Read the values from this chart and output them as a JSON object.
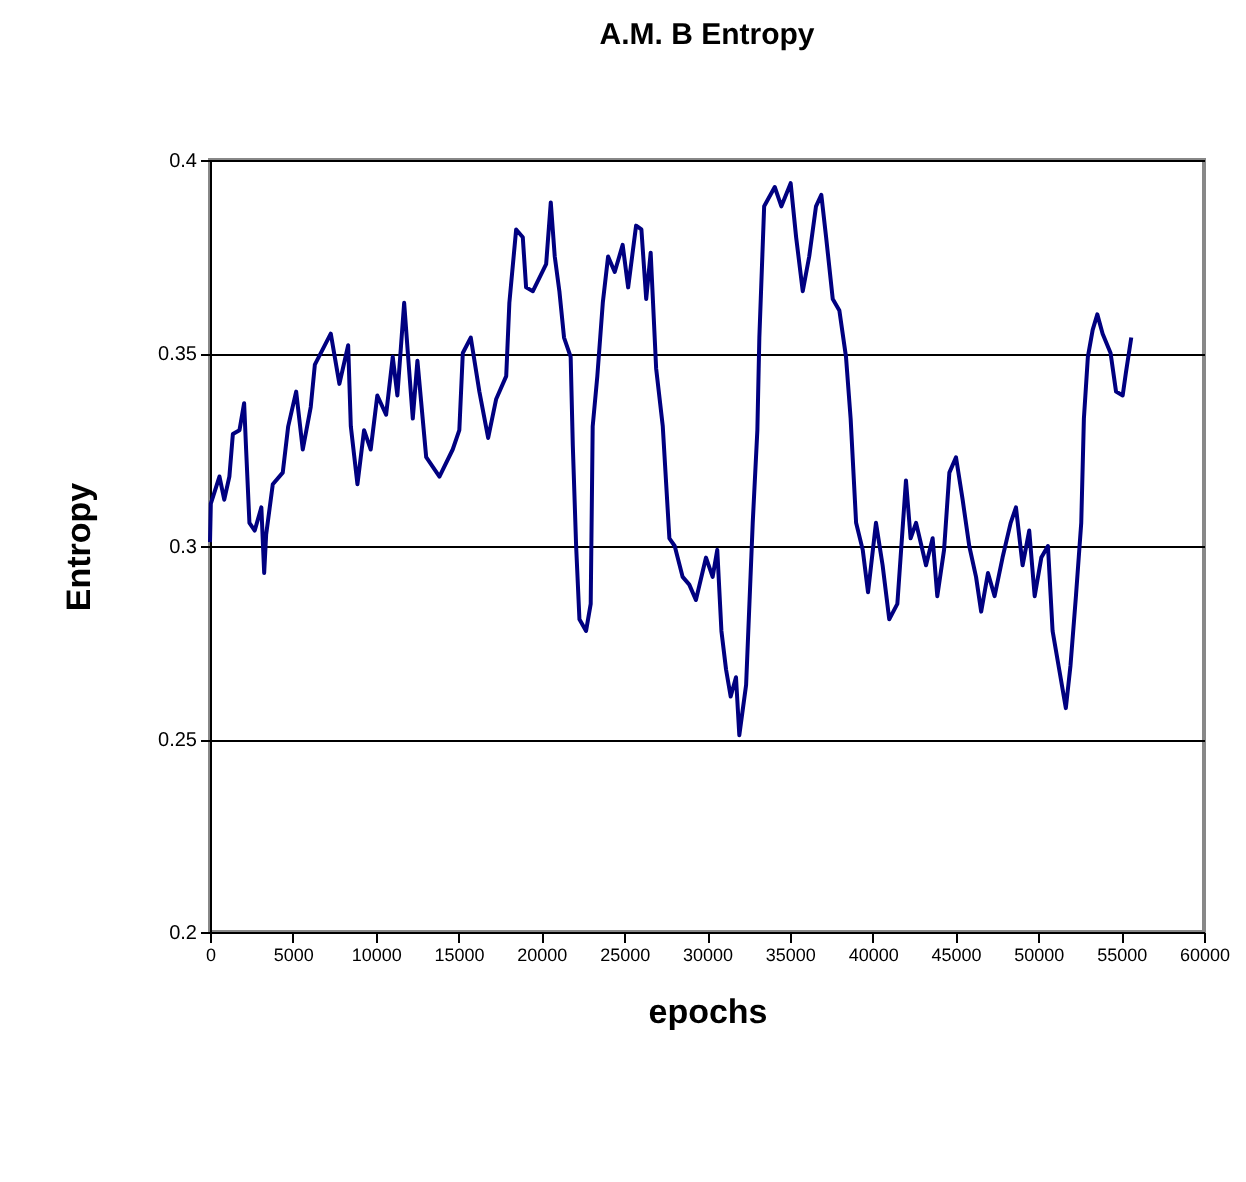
{
  "chart_data": {
    "type": "line",
    "title": "A.M. B Entropy",
    "xlabel": "epochs",
    "ylabel": "Entropy",
    "xlim": [
      0,
      60000
    ],
    "xticks": [
      0,
      5000,
      10000,
      15000,
      20000,
      25000,
      30000,
      35000,
      40000,
      45000,
      50000,
      55000,
      60000
    ],
    "ylim": [
      0.2,
      0.4
    ],
    "yticks": [
      0.2,
      0.25,
      0.3,
      0.35,
      0.4
    ],
    "grid": "y",
    "marker": "none",
    "line_style": "solid",
    "series": [
      {
        "color": "#000080",
        "x": [
          0,
          50,
          570,
          860,
          1170,
          1380,
          1780,
          2060,
          2180,
          2380,
          2700,
          3100,
          3270,
          3390,
          3790,
          4390,
          4720,
          5200,
          5600,
          6080,
          6330,
          6810,
          7290,
          7810,
          8340,
          8500,
          8900,
          9300,
          9700,
          10100,
          10630,
          11030,
          11310,
          11720,
          11960,
          12240,
          12520,
          13050,
          13850,
          14650,
          15050,
          15260,
          15740,
          16260,
          16790,
          17270,
          17880,
          18070,
          18480,
          18880,
          19080,
          19490,
          20290,
          20570,
          20810,
          21090,
          21370,
          21770,
          21900,
          22100,
          22300,
          22700,
          22980,
          23100,
          23380,
          23710,
          24030,
          24430,
          24910,
          25240,
          25720,
          26040,
          26330,
          26600,
          26930,
          27330,
          27730,
          28050,
          28530,
          28930,
          29330,
          29940,
          30340,
          30620,
          30870,
          31150,
          31430,
          31750,
          31950,
          32360,
          32760,
          33040,
          33160,
          33450,
          34090,
          34490,
          35050,
          35380,
          35780,
          36170,
          36580,
          36900,
          37190,
          37590,
          37990,
          38390,
          38670,
          39000,
          39400,
          39720,
          40200,
          40600,
          41000,
          41490,
          42010,
          42290,
          42620,
          43220,
          43620,
          43900,
          44310,
          44630,
          45030,
          45430,
          45830,
          46240,
          46550,
          46960,
          47360,
          47840,
          48330,
          48650,
          49050,
          49450,
          49780,
          50180,
          50580,
          50860,
          51260,
          51660,
          51940,
          52270,
          52590,
          52750,
          52990,
          53280,
          53560,
          53880,
          54360,
          54690,
          55090,
          55290,
          55610
        ],
        "values": [
          0.301,
          0.311,
          0.318,
          0.312,
          0.318,
          0.329,
          0.33,
          0.337,
          0.325,
          0.306,
          0.304,
          0.31,
          0.293,
          0.303,
          0.316,
          0.319,
          0.331,
          0.34,
          0.325,
          0.336,
          0.347,
          0.351,
          0.355,
          0.342,
          0.352,
          0.331,
          0.316,
          0.33,
          0.325,
          0.339,
          0.334,
          0.349,
          0.339,
          0.363,
          0.349,
          0.333,
          0.348,
          0.323,
          0.318,
          0.325,
          0.33,
          0.35,
          0.354,
          0.34,
          0.328,
          0.338,
          0.344,
          0.363,
          0.382,
          0.38,
          0.367,
          0.366,
          0.373,
          0.389,
          0.375,
          0.366,
          0.354,
          0.349,
          0.326,
          0.3,
          0.281,
          0.278,
          0.285,
          0.331,
          0.344,
          0.363,
          0.375,
          0.371,
          0.378,
          0.367,
          0.383,
          0.382,
          0.364,
          0.376,
          0.346,
          0.331,
          0.302,
          0.3,
          0.292,
          0.29,
          0.286,
          0.297,
          0.292,
          0.299,
          0.278,
          0.268,
          0.261,
          0.266,
          0.251,
          0.264,
          0.306,
          0.33,
          0.354,
          0.388,
          0.393,
          0.388,
          0.394,
          0.38,
          0.366,
          0.375,
          0.388,
          0.391,
          0.38,
          0.364,
          0.361,
          0.349,
          0.333,
          0.306,
          0.299,
          0.288,
          0.306,
          0.295,
          0.281,
          0.285,
          0.317,
          0.302,
          0.306,
          0.295,
          0.302,
          0.287,
          0.299,
          0.319,
          0.323,
          0.312,
          0.3,
          0.292,
          0.283,
          0.293,
          0.287,
          0.297,
          0.306,
          0.31,
          0.295,
          0.304,
          0.287,
          0.297,
          0.3,
          0.278,
          0.268,
          0.258,
          0.269,
          0.287,
          0.306,
          0.333,
          0.349,
          0.356,
          0.36,
          0.355,
          0.35,
          0.34,
          0.339,
          0.345,
          0.354
        ]
      }
    ]
  }
}
